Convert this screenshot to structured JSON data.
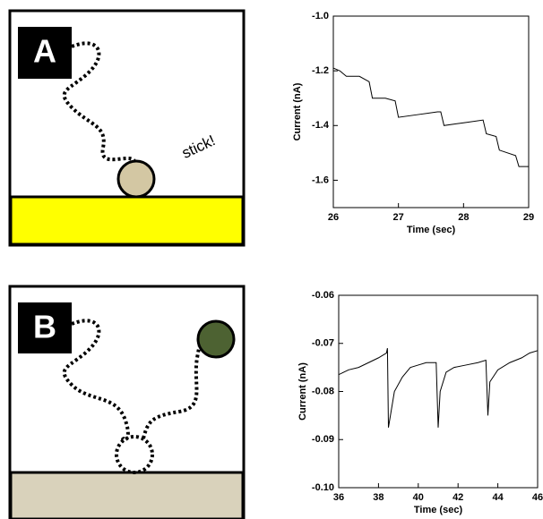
{
  "panels": [
    {
      "label": "A",
      "annotation": "stick!"
    },
    {
      "label": "B"
    }
  ],
  "chart_data": [
    {
      "type": "line",
      "x_label": "Time (sec)",
      "y_label": "Current (nA)",
      "color": "#000000",
      "x": [
        26.0,
        26.1,
        26.2,
        26.4,
        26.55,
        26.6,
        26.8,
        26.95,
        27.0,
        27.3,
        27.6,
        27.65,
        27.7,
        28.0,
        28.3,
        28.35,
        28.5,
        28.55,
        28.8,
        28.85,
        29.0
      ],
      "values": [
        -1.19,
        -1.2,
        -1.22,
        -1.22,
        -1.24,
        -1.3,
        -1.3,
        -1.31,
        -1.37,
        -1.36,
        -1.35,
        -1.35,
        -1.4,
        -1.39,
        -1.38,
        -1.43,
        -1.44,
        -1.49,
        -1.51,
        -1.55,
        -1.55
      ],
      "xlim": [
        26,
        29
      ],
      "xticks": [
        26,
        27,
        28,
        29
      ],
      "ylim": [
        -1.7,
        -1.0
      ],
      "yticks": [
        {
          "value": -1.0,
          "label": "-1.0"
        },
        -1.2,
        -1.4,
        -1.6
      ]
    },
    {
      "type": "line",
      "x_label": "Time (sec)",
      "y_label": "Current (nA)",
      "color": "#000000",
      "x": [
        36,
        36.5,
        37,
        37.5,
        38,
        38.4,
        38.45,
        38.5,
        38.6,
        38.8,
        39.2,
        39.6,
        40.0,
        40.4,
        40.9,
        41.0,
        41.1,
        41.4,
        41.8,
        42.4,
        43.0,
        43.4,
        43.5,
        43.6,
        44,
        44.6,
        45.2,
        45.6,
        46
      ],
      "values": [
        -0.0765,
        -0.0755,
        -0.075,
        -0.074,
        -0.073,
        -0.072,
        -0.071,
        -0.0875,
        -0.085,
        -0.08,
        -0.077,
        -0.075,
        -0.0745,
        -0.074,
        -0.074,
        -0.0875,
        -0.08,
        -0.076,
        -0.075,
        -0.0745,
        -0.074,
        -0.0735,
        -0.085,
        -0.078,
        -0.0755,
        -0.074,
        -0.073,
        -0.072,
        -0.0715
      ],
      "xlim": [
        36,
        46
      ],
      "xticks": [
        36,
        38,
        40,
        42,
        44,
        46
      ],
      "ylim": [
        -0.1,
        -0.06
      ],
      "yticks": [
        -0.06,
        -0.07,
        -0.08,
        -0.09,
        {
          "value": -0.1,
          "label": "-0.10"
        }
      ]
    }
  ]
}
